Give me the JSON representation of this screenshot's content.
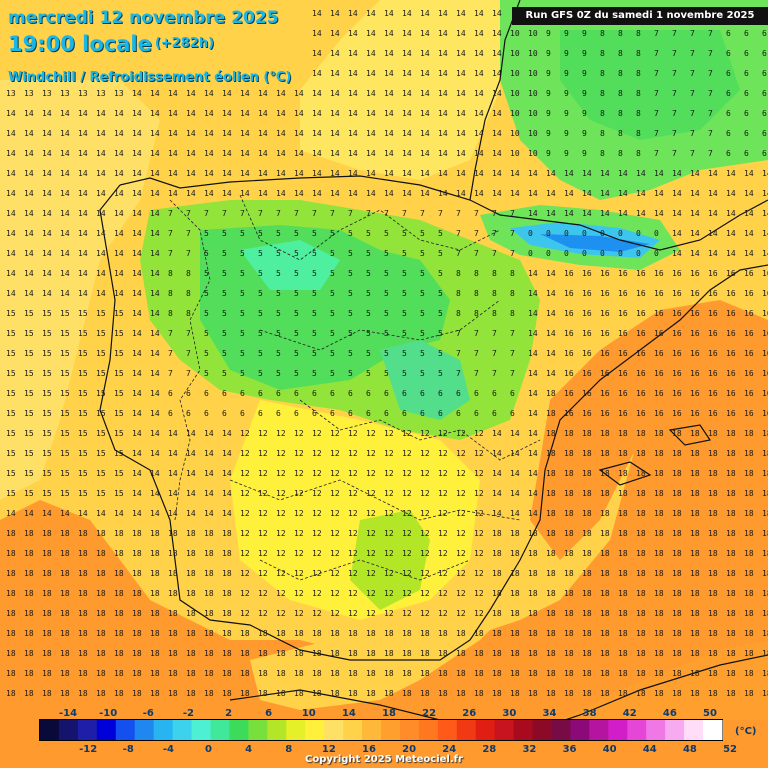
{
  "header": {
    "date": "mercredi 12 novembre 2025",
    "time": "19:00 locale",
    "lead": "(+282h)",
    "variable": "Windchill / Refroidissement éolien (°C)",
    "run": "Run GFS 0Z du samedi 1 novembre 2025"
  },
  "legend": {
    "unit": "(°C)",
    "top_labels": [
      "-14",
      "-10",
      "-6",
      "-2",
      "2",
      "6",
      "10",
      "14",
      "18",
      "22",
      "26",
      "30",
      "34",
      "38",
      "42",
      "46",
      "50"
    ],
    "bottom_labels": [
      "-12",
      "-8",
      "-4",
      "0",
      "4",
      "8",
      "12",
      "16",
      "20",
      "24",
      "28",
      "32",
      "36",
      "40",
      "44",
      "48",
      "52"
    ],
    "colors": [
      "#0a0a3a",
      "#14146e",
      "#1e1ea8",
      "#0000d8",
      "#1450f0",
      "#1e88f0",
      "#28b4f0",
      "#3cd2ee",
      "#4ef0d4",
      "#40e89c",
      "#3cdc5a",
      "#78e03c",
      "#b4e628",
      "#e6f028",
      "#fff03c",
      "#ffe066",
      "#ffd24a",
      "#ffb83a",
      "#ffa02e",
      "#ff8c28",
      "#ff7820",
      "#ff5a1a",
      "#f03a14",
      "#e01e14",
      "#c8141e",
      "#a80a1e",
      "#8c0a28",
      "#780a46",
      "#8c0a78",
      "#b414a0",
      "#d21ec8",
      "#e646d8",
      "#f078e6",
      "#f8aaf0",
      "#ffdcf8",
      "#ffffff"
    ]
  },
  "map": {
    "bands": [
      {
        "value": 18,
        "color": "#ff9a2e"
      },
      {
        "value": 16,
        "color": "#ffb83a"
      },
      {
        "value": 14,
        "color": "#ffd24a"
      },
      {
        "value": 12,
        "color": "#ffe660"
      },
      {
        "value": 10,
        "color": "#fff03c"
      },
      {
        "value": 8,
        "color": "#d6ec2c"
      },
      {
        "value": 6,
        "color": "#92e43a"
      },
      {
        "value": 4,
        "color": "#52de5a"
      },
      {
        "value": 2,
        "color": "#40d8b0"
      },
      {
        "value": 0,
        "color": "#3cc6ee"
      },
      {
        "value": -2,
        "color": "#1e90f0"
      }
    ]
  },
  "copyright": "Copyright 2025 Meteociel.fr"
}
